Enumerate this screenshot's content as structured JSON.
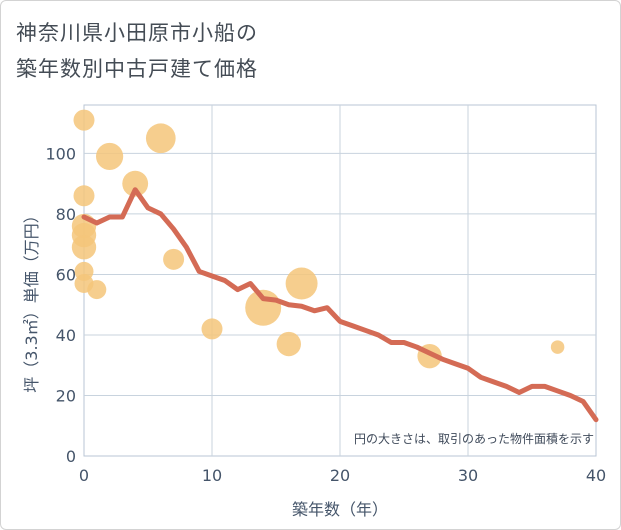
{
  "title_line1": "神奈川県小田原市小船の",
  "title_line2": "築年数別中古戸建て価格",
  "chart_data": {
    "type": "scatter",
    "xlabel": "築年数（年）",
    "ylabel": "坪（3.3㎡）単価（万円）",
    "xlim": [
      0,
      40
    ],
    "ylim": [
      0,
      116
    ],
    "xticks": [
      0,
      10,
      20,
      30,
      40
    ],
    "yticks": [
      0,
      20,
      40,
      60,
      80,
      100
    ],
    "grid": true,
    "note": "円の大きさは、取引のあった物件面積を示す",
    "bubble_color": "#f5c57a",
    "line_color": "#d46b55",
    "bubbles": [
      {
        "x": 0,
        "y": 111,
        "size": 2
      },
      {
        "x": 0,
        "y": 86,
        "size": 2
      },
      {
        "x": 0,
        "y": 76,
        "size": 3
      },
      {
        "x": 0,
        "y": 73,
        "size": 3
      },
      {
        "x": 0,
        "y": 69,
        "size": 3
      },
      {
        "x": 0,
        "y": 61,
        "size": 1.5
      },
      {
        "x": 0,
        "y": 57,
        "size": 1.5
      },
      {
        "x": 1,
        "y": 55,
        "size": 1.5
      },
      {
        "x": 2,
        "y": 99,
        "size": 4
      },
      {
        "x": 4,
        "y": 90,
        "size": 3.5
      },
      {
        "x": 6,
        "y": 105,
        "size": 5
      },
      {
        "x": 7,
        "y": 65,
        "size": 2
      },
      {
        "x": 10,
        "y": 42,
        "size": 2
      },
      {
        "x": 14,
        "y": 49,
        "size": 8
      },
      {
        "x": 16,
        "y": 37,
        "size": 3
      },
      {
        "x": 17,
        "y": 57,
        "size": 6
      },
      {
        "x": 27,
        "y": 33,
        "size": 3
      },
      {
        "x": 37,
        "y": 36,
        "size": 0.5
      }
    ],
    "trend": {
      "x": [
        0,
        1,
        2,
        3,
        4,
        5,
        6,
        7,
        8,
        9,
        10,
        11,
        12,
        13,
        14,
        15,
        16,
        17,
        18,
        19,
        20,
        21,
        22,
        23,
        24,
        25,
        26,
        27,
        28,
        29,
        30,
        31,
        32,
        33,
        34,
        35,
        36,
        37,
        38,
        39,
        40
      ],
      "y": [
        79,
        77,
        79,
        79,
        88,
        82,
        80,
        75,
        69,
        61,
        59.5,
        58,
        55,
        57,
        52,
        51.5,
        50,
        49.5,
        48,
        49,
        44.5,
        43,
        41.5,
        40,
        37.5,
        37.5,
        36,
        34,
        32,
        30.5,
        29,
        26,
        24.5,
        23,
        21,
        23,
        23,
        21.5,
        20,
        18,
        12
      ]
    }
  }
}
